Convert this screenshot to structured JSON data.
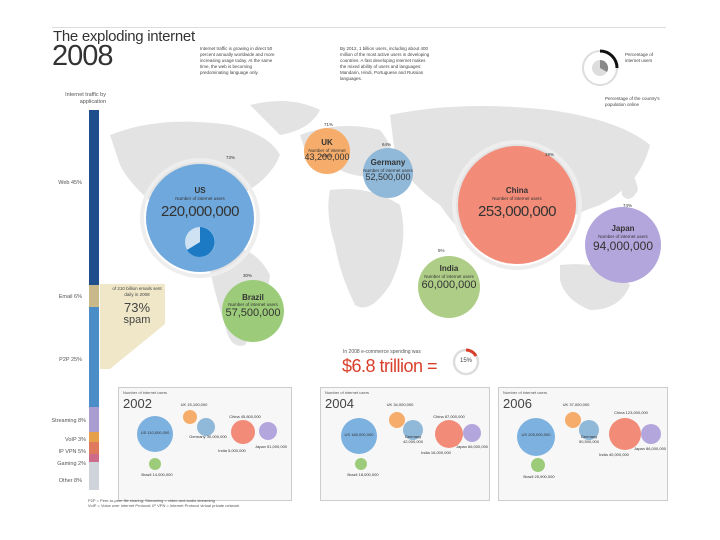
{
  "header": {
    "title": "The exploding internet",
    "year": "2008",
    "blurb1": "Internet traffic is growing in direct 50 percent annually worldwide and more  increasing usage today. At the same time, the web is becoming predominating language only.",
    "blurb2": "By 2012, 1 billion users, including about 400 million of the most active users in developing countries. A fast developing internet makes the mixed ability of users and languages: Mandarin, Hindi, Portuguese and Russian languages.",
    "legend_label1": "Percentage of internet users",
    "legend_label2": "Percentage of the country's population online"
  },
  "sidebar": {
    "title": "Internet traffic by application",
    "segments": [
      {
        "label": "Web 45%",
        "color": "#1f4e8c"
      },
      {
        "label": "Email 6%",
        "color": "#c9b98a"
      },
      {
        "label": "P2P 25%",
        "color": "#4b8dc6"
      },
      {
        "label": "Streaming 8%",
        "color": "#a99cd0"
      },
      {
        "label": "VoIP 3%",
        "color": "#e6a04a"
      },
      {
        "label": "IP VPN 5%",
        "color": "#e07a5f"
      },
      {
        "label": "Gaming 2%",
        "color": "#cc6b8a"
      },
      {
        "label": "Other 8%",
        "color": "#cfd4da"
      }
    ]
  },
  "spam": {
    "note": "of 210 billion emails sent daily in 2008",
    "value": "73%",
    "label": "spam"
  },
  "countries": [
    {
      "name": "US",
      "sub": "Number of internet users",
      "value": "220,000,000",
      "pct": "73%",
      "color": "#6fa8dc"
    },
    {
      "name": "UK",
      "sub": "Number of internet users",
      "value": "43,200,000",
      "pct": "71%",
      "color": "#f6ad6b"
    },
    {
      "name": "Germany",
      "sub": "Number of internet users",
      "value": "52,500,000",
      "pct": "64%",
      "color": "#8fb8d9"
    },
    {
      "name": "China",
      "sub": "Number of internet users",
      "value": "253,000,000",
      "pct": "19%",
      "color": "#f28b78"
    },
    {
      "name": "Japan",
      "sub": "Number of internet users",
      "value": "94,000,000",
      "pct": "74%",
      "color": "#b3a6dd"
    },
    {
      "name": "Brazil",
      "sub": "Number of internet users",
      "value": "57,500,000",
      "pct": "30%",
      "color": "#9ccc7a"
    },
    {
      "name": "India",
      "sub": "Number of internet users",
      "value": "60,000,000",
      "pct": "5%",
      "color": "#aecd86"
    }
  ],
  "commerce": {
    "note": "In 2008 e-commerce spending was",
    "value": "$6.8 trillion =",
    "share": "15%"
  },
  "history": [
    {
      "year": "2002",
      "cap": "Number of internet users",
      "labels": [
        "US 110,000,000",
        "UK 15,100,000",
        "Germany 30,000,000",
        "China 45,800,000",
        "Japan 51,000,000",
        "India 5,000,000",
        "Brazil 14,000,000"
      ]
    },
    {
      "year": "2004",
      "cap": "Number of internet users",
      "labels": [
        "US 185,000,000",
        "UK 34,000,000",
        "Germany 42,000,000",
        "China 87,000,000",
        "Japan 66,000,000",
        "India 16,000,000",
        "Brazil 18,000,000"
      ]
    },
    {
      "year": "2006",
      "cap": "Number of internet users",
      "labels": [
        "US 205,000,000",
        "UK 37,000,000",
        "Germany 50,500,000",
        "China 123,000,000",
        "Japan 86,000,000",
        "India 40,000,000",
        "Brazil 25,900,000"
      ]
    }
  ],
  "footer": {
    "line1": "P2P = Peer-to-peer file sharing; Streaming = video and audio streaming",
    "line2": "VoIP = Voice over Internet Protocol; IP VPN = Internet Protocol virtual private network"
  }
}
